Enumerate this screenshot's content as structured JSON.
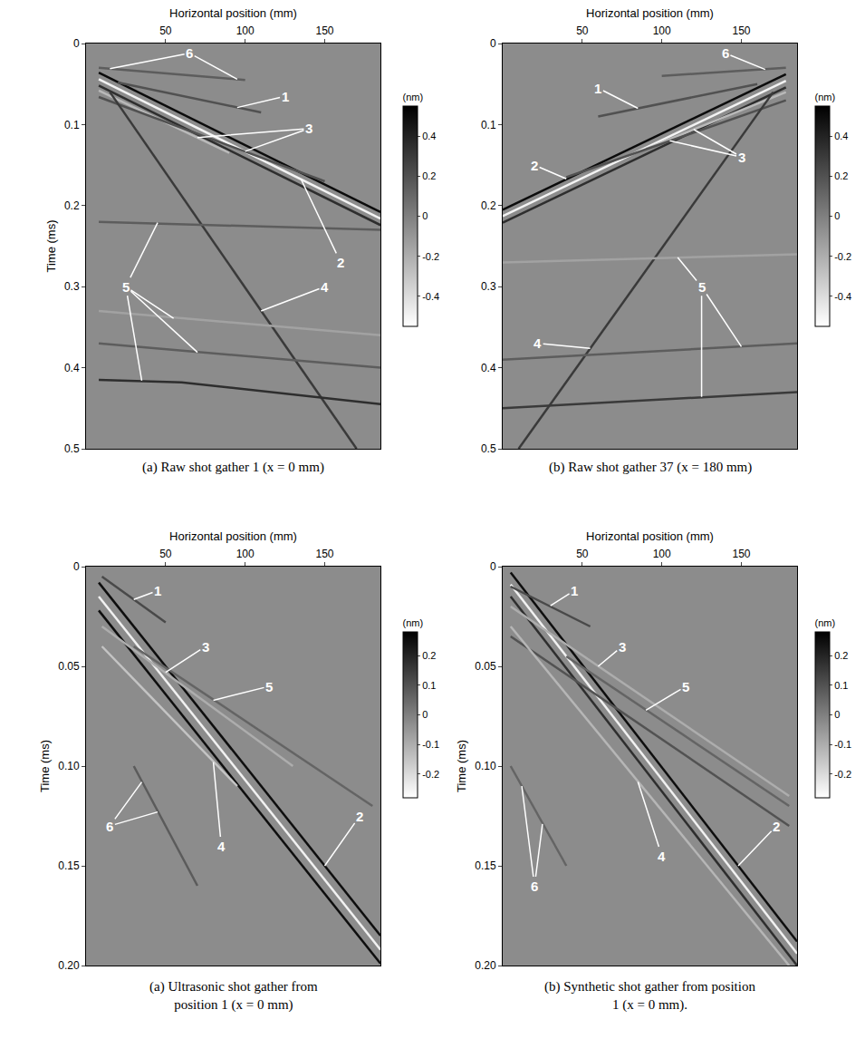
{
  "chart_data": [
    {
      "type": "line",
      "caption": "(a) Raw shot gather 1 (x = 0 mm)",
      "xlabel": "Horizontal position (mm)",
      "ylabel": "Time (ms)",
      "xlim": [
        0,
        185
      ],
      "xticks": [
        50,
        100,
        150
      ],
      "ylim": [
        0,
        0.5
      ],
      "yticks": [
        0,
        0.1,
        0.2,
        0.3,
        0.4,
        0.5
      ],
      "colorbar": {
        "title": "(nm)",
        "lim": [
          -0.55,
          0.55
        ],
        "ticks": [
          -0.4,
          -0.2,
          0,
          0.2,
          0.4
        ]
      },
      "series": [
        {
          "x": [
            8,
            185
          ],
          "values": [
            0.036,
            0.208
          ],
          "amplitude": 0.5
        },
        {
          "x": [
            8,
            185
          ],
          "values": [
            0.044,
            0.216
          ],
          "amplitude": -0.5
        },
        {
          "x": [
            8,
            185
          ],
          "values": [
            0.052,
            0.224
          ],
          "amplitude": 0.35
        },
        {
          "x": [
            20,
            110
          ],
          "values": [
            0.048,
            0.085
          ],
          "amplitude": 0.2
        },
        {
          "x": [
            8,
            90
          ],
          "values": [
            0.058,
            0.135
          ],
          "amplitude": -0.25
        },
        {
          "x": [
            8,
            150
          ],
          "values": [
            0.066,
            0.17
          ],
          "amplitude": 0.2
        },
        {
          "x": [
            15,
            170
          ],
          "values": [
            0.06,
            0.5
          ],
          "amplitude": 0.3
        },
        {
          "x": [
            8,
            60,
            185
          ],
          "values": [
            0.415,
            0.418,
            0.445
          ],
          "amplitude": 0.35
        },
        {
          "x": [
            8,
            185
          ],
          "values": [
            0.22,
            0.23
          ],
          "amplitude": 0.15
        },
        {
          "x": [
            8,
            185
          ],
          "values": [
            0.33,
            0.36
          ],
          "amplitude": -0.15
        },
        {
          "x": [
            8,
            185
          ],
          "values": [
            0.37,
            0.4
          ],
          "amplitude": 0.15
        },
        {
          "x": [
            8,
            100
          ],
          "values": [
            0.03,
            0.045
          ],
          "amplitude": 0.15
        }
      ],
      "annotations": [
        {
          "text": "6",
          "x": 65,
          "y": 0.012,
          "points": [
            [
              15,
              0.031
            ],
            [
              95,
              0.044
            ]
          ]
        },
        {
          "text": "1",
          "x": 125,
          "y": 0.065,
          "points": [
            [
              95,
              0.079
            ]
          ]
        },
        {
          "text": "3",
          "x": 140,
          "y": 0.105,
          "points": [
            [
              70,
              0.116
            ],
            [
              100,
              0.133
            ]
          ]
        },
        {
          "text": "2",
          "x": 160,
          "y": 0.27,
          "points": [
            [
              135,
              0.167
            ]
          ]
        },
        {
          "text": "5",
          "x": 25,
          "y": 0.3,
          "points": [
            [
              45,
              0.221
            ],
            [
              55,
              0.339
            ],
            [
              70,
              0.381
            ],
            [
              35,
              0.416
            ]
          ]
        },
        {
          "text": "4",
          "x": 150,
          "y": 0.3,
          "points": [
            [
              110,
              0.33
            ]
          ]
        }
      ]
    },
    {
      "type": "line",
      "caption": "(b) Raw shot gather 37 (x = 180 mm)",
      "xlabel": "Horizontal position (mm)",
      "xlim": [
        0,
        185
      ],
      "xticks": [
        50,
        100,
        150
      ],
      "ylim": [
        0,
        0.5
      ],
      "yticks": [
        0,
        0.1,
        0.2,
        0.3,
        0.4,
        0.5
      ],
      "colorbar": {
        "title": "(nm)",
        "lim": [
          -0.55,
          0.55
        ],
        "ticks": [
          -0.4,
          -0.2,
          0,
          0.2,
          0.4
        ]
      },
      "series": [
        {
          "x": [
            178,
            0
          ],
          "values": [
            0.038,
            0.205
          ],
          "amplitude": 0.5
        },
        {
          "x": [
            178,
            0
          ],
          "values": [
            0.046,
            0.213
          ],
          "amplitude": -0.5
        },
        {
          "x": [
            178,
            0
          ],
          "values": [
            0.054,
            0.221
          ],
          "amplitude": 0.35
        },
        {
          "x": [
            160,
            60
          ],
          "values": [
            0.05,
            0.09
          ],
          "amplitude": 0.2
        },
        {
          "x": [
            178,
            90
          ],
          "values": [
            0.06,
            0.13
          ],
          "amplitude": -0.25
        },
        {
          "x": [
            178,
            40
          ],
          "values": [
            0.07,
            0.165
          ],
          "amplitude": 0.2
        },
        {
          "x": [
            170,
            10
          ],
          "values": [
            0.06,
            0.5
          ],
          "amplitude": 0.3
        },
        {
          "x": [
            0,
            185
          ],
          "values": [
            0.45,
            0.43
          ],
          "amplitude": 0.3
        },
        {
          "x": [
            0,
            185
          ],
          "values": [
            0.27,
            0.26
          ],
          "amplitude": -0.15
        },
        {
          "x": [
            0,
            185
          ],
          "values": [
            0.39,
            0.37
          ],
          "amplitude": 0.15
        },
        {
          "x": [
            178,
            100
          ],
          "values": [
            0.03,
            0.04
          ],
          "amplitude": 0.15
        }
      ],
      "annotations": [
        {
          "text": "6",
          "x": 140,
          "y": 0.012,
          "points": [
            [
              165,
              0.032
            ]
          ]
        },
        {
          "text": "1",
          "x": 60,
          "y": 0.055,
          "points": [
            [
              85,
              0.08
            ]
          ]
        },
        {
          "text": "3",
          "x": 150,
          "y": 0.14,
          "points": [
            [
              120,
              0.106
            ],
            [
              105,
              0.12
            ]
          ]
        },
        {
          "text": "2",
          "x": 20,
          "y": 0.15,
          "points": [
            [
              40,
              0.167
            ]
          ]
        },
        {
          "text": "4",
          "x": 22,
          "y": 0.37,
          "points": [
            [
              55,
              0.376
            ]
          ]
        },
        {
          "text": "5",
          "x": 125,
          "y": 0.3,
          "points": [
            [
              110,
              0.264
            ],
            [
              150,
              0.374
            ],
            [
              125,
              0.436
            ]
          ]
        }
      ]
    },
    {
      "type": "line",
      "caption": "(a) Ultrasonic shot gather from position 1 (x = 0 mm)",
      "xlabel": "Horizontal position (mm)",
      "ylabel": "Time (ms)",
      "xlim": [
        0,
        185
      ],
      "xticks": [
        50,
        100,
        150
      ],
      "ylim": [
        0,
        0.2
      ],
      "yticks": [
        0,
        0.05,
        {
          "value": 0.1,
          "label": "0.10"
        },
        0.15,
        {
          "value": 0.2,
          "label": "0.20"
        }
      ],
      "colorbar": {
        "title": "(nm)",
        "lim": [
          -0.28,
          0.28
        ],
        "ticks": [
          -0.2,
          -0.1,
          0,
          0.1,
          0.2
        ]
      },
      "series": [
        {
          "x": [
            8,
            185
          ],
          "values": [
            0.008,
            0.185
          ],
          "amplitude": 0.25
        },
        {
          "x": [
            8,
            185
          ],
          "values": [
            0.015,
            0.192
          ],
          "amplitude": -0.25
        },
        {
          "x": [
            8,
            185
          ],
          "values": [
            0.022,
            0.199
          ],
          "amplitude": 0.25
        },
        {
          "x": [
            10,
            50
          ],
          "values": [
            0.005,
            0.028
          ],
          "amplitude": 0.12
        },
        {
          "x": [
            10,
            130
          ],
          "values": [
            0.03,
            0.1
          ],
          "amplitude": -0.1
        },
        {
          "x": [
            30,
            180
          ],
          "values": [
            0.04,
            0.12
          ],
          "amplitude": 0.06
        },
        {
          "x": [
            10,
            95
          ],
          "values": [
            0.04,
            0.11
          ],
          "amplitude": -0.15
        },
        {
          "x": [
            30,
            70
          ],
          "values": [
            0.1,
            0.16
          ],
          "amplitude": 0.08
        }
      ],
      "annotations": [
        {
          "text": "1",
          "x": 45,
          "y": 0.012,
          "points": [
            [
              30,
              0.0165
            ]
          ]
        },
        {
          "text": "3",
          "x": 75,
          "y": 0.04,
          "points": [
            [
              50,
              0.053
            ]
          ]
        },
        {
          "text": "5",
          "x": 115,
          "y": 0.06,
          "points": [
            [
              80,
              0.067
            ]
          ]
        },
        {
          "text": "2",
          "x": 172,
          "y": 0.125,
          "points": [
            [
              150,
              0.15
            ]
          ]
        },
        {
          "text": "4",
          "x": 85,
          "y": 0.14,
          "points": [
            [
              80,
              0.098
            ]
          ]
        },
        {
          "text": "6",
          "x": 15,
          "y": 0.13,
          "points": [
            [
              35,
              0.108
            ],
            [
              45,
              0.123
            ]
          ]
        }
      ]
    },
    {
      "type": "line",
      "caption": "(b) Synthetic shot gather from position 1 (x = 0 mm).",
      "xlabel": "Horizontal position (mm)",
      "ylabel": "Time (ms)",
      "xlim": [
        0,
        185
      ],
      "xticks": [
        50,
        100,
        150
      ],
      "ylim": [
        0,
        0.2
      ],
      "yticks": [
        0,
        0.05,
        {
          "value": 0.1,
          "label": "0.10"
        },
        0.15,
        {
          "value": 0.2,
          "label": "0.20"
        }
      ],
      "colorbar": {
        "title": "(nm)",
        "lim": [
          -0.28,
          0.28
        ],
        "ticks": [
          -0.2,
          -0.1,
          0,
          0.1,
          0.2
        ]
      },
      "series": [
        {
          "x": [
            5,
            185
          ],
          "values": [
            0.003,
            0.188
          ],
          "amplitude": 0.25
        },
        {
          "x": [
            5,
            185
          ],
          "values": [
            0.009,
            0.194
          ],
          "amplitude": -0.25
        },
        {
          "x": [
            5,
            185
          ],
          "values": [
            0.015,
            0.2
          ],
          "amplitude": 0.18
        },
        {
          "x": [
            5,
            55
          ],
          "values": [
            0.01,
            0.03
          ],
          "amplitude": 0.12
        },
        {
          "x": [
            5,
            180
          ],
          "values": [
            0.02,
            0.115
          ],
          "amplitude": -0.1
        },
        {
          "x": [
            5,
            180
          ],
          "values": [
            0.035,
            0.13
          ],
          "amplitude": 0.1
        },
        {
          "x": [
            40,
            180
          ],
          "values": [
            0.045,
            0.12
          ],
          "amplitude": 0.06
        },
        {
          "x": [
            5,
            180
          ],
          "values": [
            0.03,
            0.2
          ],
          "amplitude": -0.12
        },
        {
          "x": [
            5,
            40
          ],
          "values": [
            0.1,
            0.15
          ],
          "amplitude": 0.06
        }
      ],
      "annotations": [
        {
          "text": "1",
          "x": 45,
          "y": 0.012,
          "points": [
            [
              30,
              0.0196
            ]
          ]
        },
        {
          "text": "3",
          "x": 75,
          "y": 0.04,
          "points": [
            [
              60,
              0.05
            ]
          ]
        },
        {
          "text": "5",
          "x": 115,
          "y": 0.06,
          "points": [
            [
              90,
              0.072
            ]
          ]
        },
        {
          "text": "2",
          "x": 172,
          "y": 0.13,
          "points": [
            [
              148,
              0.15
            ]
          ]
        },
        {
          "text": "4",
          "x": 100,
          "y": 0.145,
          "points": [
            [
              85,
              0.108
            ]
          ]
        },
        {
          "text": "6",
          "x": 20,
          "y": 0.16,
          "points": [
            [
              12,
              0.11
            ],
            [
              25,
              0.129
            ]
          ]
        }
      ]
    }
  ]
}
